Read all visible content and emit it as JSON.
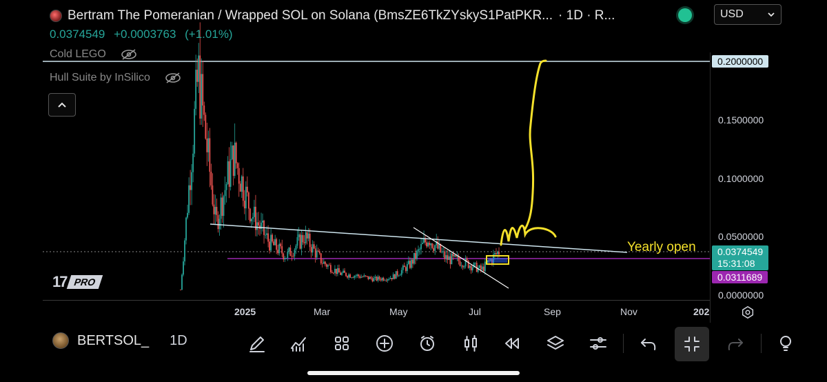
{
  "header": {
    "title": "Bertram The Pomeranian / Wrapped SOL on Solana (BmsZE6TkZYskyS1PatPKR...",
    "interval_suffix": "· 1D · R...",
    "price": "0.0374549",
    "change": "+0.0003763",
    "change_pct": "(+1.01%)",
    "currency": "USD"
  },
  "indicators": [
    {
      "label": "Cold LEGO"
    },
    {
      "label": "Hull Suite by InSilico"
    }
  ],
  "logo": {
    "pro": "PRO"
  },
  "price_axis": {
    "labels": [
      "0.2000000",
      "0.1500000",
      "0.1000000",
      "0.0500000",
      "0.0000000"
    ],
    "current_price": "0.0374549",
    "countdown": "15:31:08",
    "purple_level": "0.0311689"
  },
  "annotation": {
    "yearly_open": "Yearly open"
  },
  "time_axis": {
    "labels": [
      "2025",
      "Mar",
      "May",
      "Jul",
      "Sep",
      "Nov",
      "202"
    ]
  },
  "symbol": {
    "ticker": "BERTSOL_",
    "interval": "1D"
  },
  "toolbar": {
    "icons": [
      "pen-icon",
      "indicators-icon",
      "layout-grid-icon",
      "add-icon",
      "alert-icon",
      "candle-icon",
      "replay-icon",
      "layers-icon",
      "settings-sliders-icon",
      "undo-icon",
      "exit-fullscreen-icon",
      "redo-icon",
      "lightbulb-icon"
    ]
  },
  "colors": {
    "up": "#26a69a",
    "down": "#ef5350",
    "accent_yellow": "#f5e12b",
    "purple": "#9c27b0",
    "green_tag": "#26a69a"
  },
  "chart_data": {
    "type": "candlestick",
    "ylim": [
      0,
      0.2
    ],
    "series": [
      {
        "values": [
          0.004,
          0.19,
          0.06,
          0.12,
          0.07,
          0.045,
          0.033,
          0.05,
          0.028,
          0.018,
          0.016,
          0.013,
          0.015,
          0.026,
          0.049,
          0.031,
          0.028,
          0.021,
          0.037
        ]
      }
    ],
    "levels": [
      {
        "value": 0.2,
        "label": "0.2000000"
      },
      {
        "value": 0.0374549,
        "label": "0.0374549"
      },
      {
        "value": 0.0311689,
        "label": "0.0311689"
      }
    ]
  }
}
